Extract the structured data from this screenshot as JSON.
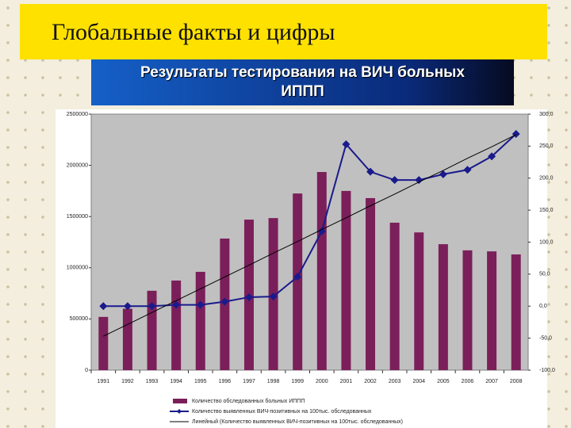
{
  "header": {
    "title": "Глобальные факты и цифры"
  },
  "chart_data": {
    "type": "combo",
    "title": "Результаты тестирования на ВИЧ больных ИППП",
    "categories": [
      "1991",
      "1992",
      "1993",
      "1994",
      "1995",
      "1996",
      "1997",
      "1998",
      "1999",
      "2000",
      "2001",
      "2002",
      "2003",
      "2004",
      "2005",
      "2006",
      "2007",
      "2008"
    ],
    "series": [
      {
        "name": "Количество обследованных больных ИППП",
        "type": "bar",
        "axis": "y",
        "color": "#7b1f5a",
        "values": [
          520000,
          600000,
          775000,
          875000,
          960000,
          1285000,
          1470000,
          1485000,
          1725000,
          1935000,
          1750000,
          1680000,
          1440000,
          1345000,
          1230000,
          1170000,
          1160000,
          1130000
        ]
      },
      {
        "name": "Количество выявленных ВИЧ-позитивных на 100тыс. обследованных",
        "type": "line",
        "axis": "y2",
        "color": "#1a1a8c",
        "markers": true,
        "values": [
          0,
          0,
          0,
          2,
          2,
          7,
          14,
          15,
          46,
          117,
          253,
          210,
          197,
          197,
          206,
          213,
          234,
          269
        ]
      },
      {
        "name": "Линейный (Количество выявленных ВИЧ-позитивных на 100тыс. обследованных)",
        "type": "line",
        "axis": "y2",
        "color": "#000000",
        "markers": false,
        "values": [
          -47,
          -28.5,
          -10,
          8.6,
          27,
          45.6,
          64,
          82.7,
          101,
          119.8,
          138,
          156.8,
          175,
          193.9,
          212,
          231,
          249,
          268
        ]
      }
    ],
    "ylim": [
      0,
      2500000
    ],
    "yticks": [
      0,
      500000,
      1000000,
      1500000,
      2000000,
      2500000
    ],
    "y2lim": [
      -100,
      300
    ],
    "y2ticks": [
      {
        "value": -100,
        "label": "-100,0"
      },
      {
        "value": -50,
        "label": "-50,0"
      },
      {
        "value": 0,
        "label": "0,0"
      },
      {
        "value": 50,
        "label": "50,0"
      },
      {
        "value": 100,
        "label": "100,0"
      },
      {
        "value": 150,
        "label": "150,0"
      },
      {
        "value": 200,
        "label": "200,0"
      },
      {
        "value": 250,
        "label": "250,0"
      },
      {
        "value": 300,
        "label": "300,0"
      }
    ],
    "legend": "bottom"
  }
}
